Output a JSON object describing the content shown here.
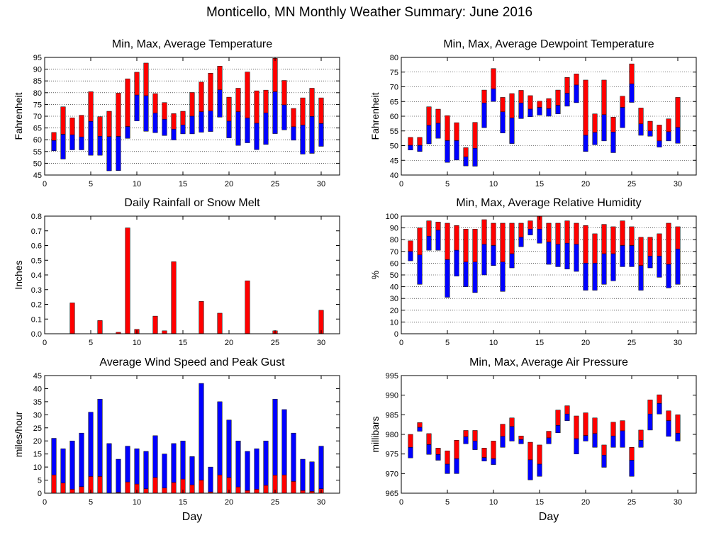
{
  "page": {
    "title": "Monticello, MN Monthly Weather Summary: June 2016"
  },
  "colors": {
    "high": "#ff0000",
    "low": "#0000ff",
    "axis": "#000000",
    "grid": "#000000"
  },
  "chart_data": [
    {
      "type": "bar",
      "id": "temp",
      "title": "Min, Max, Average Temperature",
      "xlabel": "",
      "ylabel": "Fahrenheit",
      "xlim": [
        0,
        32
      ],
      "ylim": [
        45,
        95
      ],
      "xticks": [
        0,
        5,
        10,
        15,
        20,
        25,
        30
      ],
      "yticks": [
        45,
        50,
        55,
        60,
        65,
        70,
        75,
        80,
        85,
        90,
        95
      ],
      "grid": true,
      "days": [
        1,
        2,
        3,
        4,
        5,
        6,
        7,
        8,
        9,
        10,
        11,
        12,
        13,
        14,
        15,
        16,
        17,
        18,
        19,
        20,
        21,
        22,
        23,
        24,
        25,
        26,
        27,
        28,
        29,
        30
      ],
      "series": [
        {
          "name": "Min",
          "values": [
            55.3,
            51.8,
            55.7,
            55.7,
            53.4,
            53.4,
            46.8,
            46.9,
            60.6,
            68.0,
            63.6,
            63.0,
            61.8,
            59.9,
            62.5,
            62.5,
            63.2,
            63.5,
            69.6,
            60.8,
            57.6,
            58.7,
            55.8,
            58.0,
            62.6,
            64.2,
            59.8,
            53.9,
            54.2,
            57.2
          ]
        },
        {
          "name": "Average",
          "values": [
            59.7,
            62.3,
            62.1,
            61.2,
            67.8,
            61.5,
            61.3,
            61.4,
            65.6,
            79.0,
            78.7,
            71.3,
            68.7,
            64.5,
            66.3,
            70.0,
            71.9,
            72.2,
            81.2,
            67.9,
            71.9,
            69.2,
            67.0,
            71.4,
            80.4,
            74.8,
            65.5,
            66.2,
            69.9,
            66.9
          ]
        },
        {
          "name": "Max",
          "values": [
            63.1,
            74.0,
            69.3,
            70.4,
            80.4,
            69.8,
            72.1,
            79.8,
            85.9,
            88.7,
            92.6,
            79.6,
            75.8,
            71.1,
            72.1,
            80.1,
            84.5,
            88.3,
            91.3,
            78.1,
            81.9,
            88.8,
            80.8,
            81.1,
            94.6,
            85.2,
            73.3,
            77.8,
            81.9,
            77.8
          ]
        }
      ]
    },
    {
      "type": "bar",
      "id": "dewpoint",
      "title": "Min, Max, Average Dewpoint Temperature",
      "xlabel": "",
      "ylabel": "Fahrenheit",
      "xlim": [
        0,
        32
      ],
      "ylim": [
        40,
        80
      ],
      "xticks": [
        0,
        5,
        10,
        15,
        20,
        25,
        30
      ],
      "yticks": [
        40,
        45,
        50,
        55,
        60,
        65,
        70,
        75,
        80
      ],
      "grid": true,
      "days": [
        1,
        2,
        3,
        4,
        5,
        6,
        7,
        8,
        9,
        10,
        11,
        12,
        13,
        14,
        15,
        16,
        17,
        18,
        19,
        20,
        21,
        22,
        23,
        24,
        25,
        26,
        27,
        28,
        29,
        30
      ],
      "series": [
        {
          "name": "Min",
          "values": [
            48.5,
            48.0,
            50.6,
            52.5,
            44.3,
            45.1,
            43.1,
            43.0,
            56.1,
            65.0,
            54.3,
            50.7,
            59.2,
            59.8,
            60.4,
            60.0,
            60.8,
            63.4,
            64.6,
            48.0,
            50.3,
            51.6,
            47.6,
            56.1,
            64.7,
            53.5,
            53.2,
            49.5,
            51.6,
            50.8
          ]
        },
        {
          "name": "Average",
          "values": [
            50.1,
            50.1,
            56.9,
            57.6,
            51.7,
            51.7,
            46.2,
            49.1,
            64.5,
            69.3,
            61.5,
            59.4,
            64.5,
            62.4,
            63.0,
            62.6,
            63.7,
            67.8,
            70.6,
            53.5,
            54.5,
            60.5,
            54.6,
            63.0,
            71.0,
            57.4,
            55.0,
            51.6,
            54.7,
            56.2
          ]
        },
        {
          "name": "Max",
          "values": [
            52.8,
            52.8,
            63.2,
            62.4,
            60.2,
            57.8,
            49.3,
            57.9,
            68.9,
            76.2,
            66.4,
            67.7,
            68.8,
            67.0,
            65.1,
            66.0,
            68.9,
            73.2,
            74.4,
            72.3,
            60.8,
            72.3,
            59.7,
            66.8,
            77.8,
            62.8,
            58.3,
            57.0,
            59.1,
            66.4
          ]
        }
      ]
    },
    {
      "type": "bar",
      "id": "rain",
      "title": "Daily Rainfall or Snow Melt",
      "xlabel": "",
      "ylabel": "Inches",
      "xlim": [
        0,
        32
      ],
      "ylim": [
        0,
        0.8
      ],
      "xticks": [
        0,
        5,
        10,
        15,
        20,
        25,
        30
      ],
      "yticks": [
        0,
        0.1,
        0.2,
        0.3,
        0.4,
        0.5,
        0.6,
        0.7,
        0.8
      ],
      "ytick_labels": [
        "0.0",
        "0.1",
        "0.2",
        "0.3",
        "0.4",
        "0.5",
        "0.6",
        "0.7",
        "0.8"
      ],
      "grid": false,
      "days": [
        1,
        2,
        3,
        4,
        5,
        6,
        7,
        8,
        9,
        10,
        11,
        12,
        13,
        14,
        15,
        16,
        17,
        18,
        19,
        20,
        21,
        22,
        23,
        24,
        25,
        26,
        27,
        28,
        29,
        30
      ],
      "values": [
        0,
        0,
        0.21,
        0,
        0,
        0.09,
        0,
        0.01,
        0.72,
        0.03,
        0,
        0.12,
        0.02,
        0.49,
        0,
        0,
        0.22,
        0,
        0.14,
        0,
        0,
        0.36,
        0,
        0,
        0.02,
        0,
        0,
        0,
        0,
        0.16
      ]
    },
    {
      "type": "bar",
      "id": "humidity",
      "title": "Min, Max, Average Relative Humidity",
      "xlabel": "",
      "ylabel": "%",
      "xlim": [
        0,
        32
      ],
      "ylim": [
        0,
        100
      ],
      "xticks": [
        0,
        5,
        10,
        15,
        20,
        25,
        30
      ],
      "yticks": [
        0,
        10,
        20,
        30,
        40,
        50,
        60,
        70,
        80,
        90,
        100
      ],
      "grid": true,
      "days": [
        1,
        2,
        3,
        4,
        5,
        6,
        7,
        8,
        9,
        10,
        11,
        12,
        13,
        14,
        15,
        16,
        17,
        18,
        19,
        20,
        21,
        22,
        23,
        24,
        25,
        26,
        27,
        28,
        29,
        30
      ],
      "series": [
        {
          "name": "Min",
          "values": [
            62,
            42,
            71,
            71,
            31,
            49,
            40,
            35,
            50,
            58,
            36,
            56,
            74,
            84,
            77,
            59,
            57,
            55,
            53,
            37,
            37,
            42,
            45,
            57,
            57,
            37,
            56,
            48,
            39,
            42
          ]
        },
        {
          "name": "Average",
          "values": [
            70,
            67,
            83,
            88,
            63,
            71,
            61,
            61,
            76,
            75,
            61,
            68,
            82,
            89,
            89,
            78,
            76,
            77,
            76,
            60,
            60,
            68,
            68,
            75,
            75,
            58,
            66,
            66,
            59,
            72
          ]
        },
        {
          "name": "Max",
          "values": [
            79,
            90,
            96,
            95,
            94,
            92,
            89,
            89,
            97,
            94,
            94,
            94,
            94,
            96,
            100,
            94,
            94,
            96,
            94,
            92,
            85,
            93,
            91,
            96,
            91,
            82,
            82,
            85,
            94,
            91
          ]
        }
      ]
    },
    {
      "type": "bar",
      "id": "wind",
      "title": "Average Wind Speed and Peak Gust",
      "xlabel": "Day",
      "ylabel": "miles/hour",
      "xlim": [
        0,
        32
      ],
      "ylim": [
        0,
        45
      ],
      "xticks": [
        0,
        5,
        10,
        15,
        20,
        25,
        30
      ],
      "yticks": [
        0,
        5,
        10,
        15,
        20,
        25,
        30,
        35,
        40,
        45
      ],
      "grid": false,
      "days": [
        1,
        2,
        3,
        4,
        5,
        6,
        7,
        8,
        9,
        10,
        11,
        12,
        13,
        14,
        15,
        16,
        17,
        18,
        19,
        20,
        21,
        22,
        23,
        24,
        25,
        26,
        27,
        28,
        29,
        30
      ],
      "series": [
        {
          "name": "Average Wind Speed",
          "values": [
            7.0,
            3.9,
            1.5,
            2.5,
            6.4,
            6.4,
            0,
            0.3,
            4.3,
            3.5,
            1.7,
            6.0,
            2.0,
            4.1,
            5.4,
            3.2,
            5.0,
            0.5,
            7.0,
            6.0,
            2.4,
            1.0,
            1.5,
            3.0,
            6.9,
            7.0,
            4.5,
            1.0,
            0.7,
            1.7
          ]
        },
        {
          "name": "Peak Gust",
          "values": [
            21,
            17,
            20,
            23,
            31,
            36,
            19,
            13,
            18,
            17,
            16,
            22,
            15,
            19,
            20,
            14,
            42,
            10,
            35,
            28,
            20,
            16,
            17,
            20,
            36,
            32,
            23,
            13,
            12,
            18
          ]
        }
      ]
    },
    {
      "type": "bar",
      "id": "pressure",
      "title": "Min, Max, Average Air Pressure",
      "xlabel": "Day",
      "ylabel": "millibars",
      "xlim": [
        0,
        32
      ],
      "ylim": [
        965,
        995
      ],
      "xticks": [
        0,
        5,
        10,
        15,
        20,
        25,
        30
      ],
      "yticks": [
        965,
        970,
        975,
        980,
        985,
        990,
        995
      ],
      "grid": false,
      "days": [
        1,
        2,
        3,
        4,
        5,
        6,
        7,
        8,
        9,
        10,
        11,
        12,
        13,
        14,
        15,
        16,
        17,
        18,
        19,
        20,
        21,
        22,
        23,
        24,
        25,
        26,
        27,
        28,
        29,
        30
      ],
      "series": [
        {
          "name": "Min",
          "values": [
            974.0,
            980.8,
            974.9,
            973.4,
            970.0,
            970.0,
            977.6,
            976.1,
            973.2,
            972.3,
            976.7,
            978.3,
            977.6,
            968.4,
            969.3,
            977.6,
            980.4,
            983.5,
            975.0,
            978.3,
            976.7,
            971.6,
            976.7,
            976.7,
            969.3,
            976.7,
            981.1,
            985.2,
            979.5,
            978.3
          ]
        },
        {
          "name": "Average",
          "values": [
            976.7,
            981.8,
            977.4,
            974.9,
            972.4,
            973.8,
            979.4,
            978.3,
            974.1,
            973.8,
            979.5,
            982.0,
            978.7,
            973.5,
            972.4,
            979.1,
            982.3,
            985.2,
            978.9,
            979.7,
            980.2,
            974.7,
            979.6,
            980.9,
            973.4,
            978.5,
            985.2,
            987.9,
            983.5,
            980.3
          ]
        },
        {
          "name": "Max",
          "values": [
            980.0,
            983.0,
            980.2,
            976.5,
            975.8,
            978.5,
            981.0,
            981.0,
            976.5,
            978.3,
            982.6,
            984.2,
            979.6,
            978.0,
            977.3,
            980.8,
            986.2,
            987.3,
            984.7,
            985.5,
            984.2,
            977.3,
            983.1,
            983.5,
            976.7,
            981.1,
            988.8,
            990.1,
            986.0,
            985.0
          ]
        }
      ]
    }
  ]
}
